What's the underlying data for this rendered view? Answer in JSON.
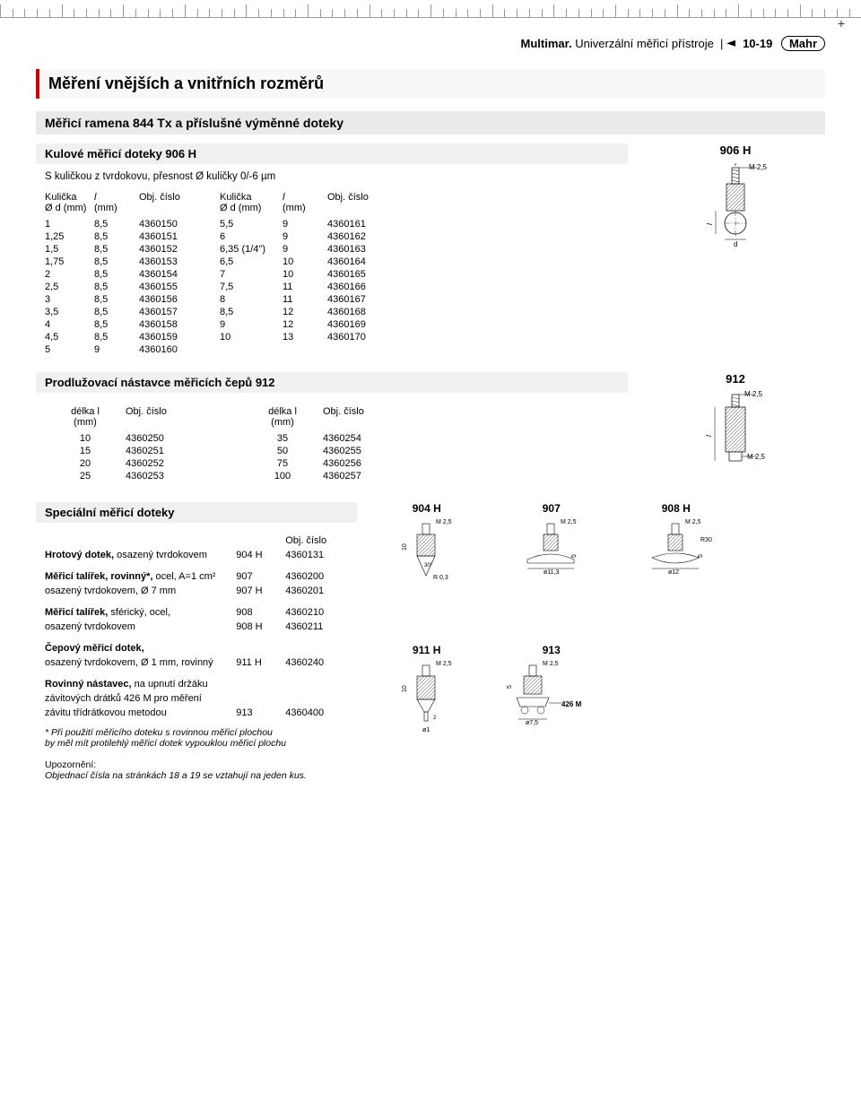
{
  "header": {
    "brand_prefix": "Multimar.",
    "subtitle": "Univerzální měřicí přístroje",
    "page": "10-19",
    "brand": "Mahr"
  },
  "title": "Měření vnějších a vnitřních rozměrů",
  "section": "Měřicí ramena 844 Tx a příslušné výměnné doteky",
  "block1": {
    "heading": "Kulové měřicí doteky 906 H",
    "desc": "S kuličkou z tvrdokovu, přesnost Ø kuličky 0/-6 µm",
    "diagram_label": "906 H",
    "thread": "M 2,5",
    "dim_l": "l",
    "dim_d": "d",
    "col_headers": {
      "kulicka": "Kulička",
      "kulicka_unit": "Ø d (mm)",
      "l": "l",
      "l_unit": "(mm)",
      "obj": "Obj. číslo"
    },
    "rows_left": [
      [
        "1",
        "8,5",
        "4360150"
      ],
      [
        "1,25",
        "8,5",
        "4360151"
      ],
      [
        "1,5",
        "8,5",
        "4360152"
      ],
      [
        "1,75",
        "8,5",
        "4360153"
      ],
      [
        "2",
        "8,5",
        "4360154"
      ],
      [
        "2,5",
        "8,5",
        "4360155"
      ],
      [
        "3",
        "8,5",
        "4360156"
      ],
      [
        "3,5",
        "8,5",
        "4360157"
      ],
      [
        "4",
        "8,5",
        "4360158"
      ],
      [
        "4,5",
        "8,5",
        "4360159"
      ],
      [
        "5",
        "9",
        "4360160"
      ]
    ],
    "rows_right": [
      [
        "5,5",
        "9",
        "4360161"
      ],
      [
        "6",
        "9",
        "4360162"
      ],
      [
        "6,35 (1/4\")",
        "9",
        "4360163"
      ],
      [
        "6,5",
        "10",
        "4360164"
      ],
      [
        "7",
        "10",
        "4360165"
      ],
      [
        "7,5",
        "11",
        "4360166"
      ],
      [
        "8",
        "11",
        "4360167"
      ],
      [
        "8,5",
        "12",
        "4360168"
      ],
      [
        "9",
        "12",
        "4360169"
      ],
      [
        "10",
        "13",
        "4360170"
      ]
    ]
  },
  "block2": {
    "heading": "Prodlužovací nástavce měřicích čepů 912",
    "diagram_label": "912",
    "thread": "M 2,5",
    "thread2": "M 2,5",
    "dim_l": "l",
    "col_headers": {
      "delka": "délka l",
      "delka_unit": "(mm)",
      "obj": "Obj. číslo"
    },
    "rows_left": [
      [
        "10",
        "4360250"
      ],
      [
        "15",
        "4360251"
      ],
      [
        "20",
        "4360252"
      ],
      [
        "25",
        "4360253"
      ]
    ],
    "rows_right": [
      [
        "35",
        "4360254"
      ],
      [
        "50",
        "4360255"
      ],
      [
        "75",
        "4360256"
      ],
      [
        "100",
        "4360257"
      ]
    ]
  },
  "block3": {
    "heading": "Speciální měřicí doteky",
    "obj_header": "Obj. číslo",
    "items": [
      {
        "lead": "Hrotový dotek,",
        "rest": " osazený tvrdokovem",
        "code": "904 H",
        "num": "4360131"
      },
      {
        "lead": "Měřicí talířek, rovinný*,",
        "rest": " ocel, A=1 cm²",
        "code": "907",
        "num": "4360200"
      },
      {
        "lead": "",
        "rest": "osazený tvrdokovem, Ø 7 mm",
        "code": "907 H",
        "num": "4360201"
      },
      {
        "lead": "Měřicí talířek,",
        "rest": " sférický, ocel,",
        "code": "908",
        "num": "4360210"
      },
      {
        "lead": "",
        "rest": "osazený tvrdokovem",
        "code": "908 H",
        "num": "4360211"
      },
      {
        "lead": "Čepový měřicí dotek,",
        "rest": "",
        "code": "",
        "num": ""
      },
      {
        "lead": "",
        "rest": "osazený tvrdokovem, Ø 1 mm, rovinný",
        "code": "911 H",
        "num": "4360240"
      },
      {
        "lead": "Rovinný nástavec,",
        "rest": " na upnutí držáku",
        "code": "",
        "num": ""
      },
      {
        "lead": "",
        "rest": "závitových drátků 426 M pro měření",
        "code": "",
        "num": ""
      },
      {
        "lead": "",
        "rest": "závitu třídrátkovou metodou",
        "code": "913",
        "num": "4360400"
      }
    ],
    "diagrams": [
      {
        "title": "904 H",
        "thread": "M 2,5",
        "h": "10",
        "angle": "30°",
        "r": "R 0,3"
      },
      {
        "title": "907",
        "thread": "M 2,5",
        "h": "5",
        "dia": "ø11,3"
      },
      {
        "title": "908 H",
        "thread": "M 2,5",
        "h": "5",
        "r": "R30",
        "dia": "ø12"
      },
      {
        "title": "911 H",
        "thread": "M 2,5",
        "h": "10",
        "h2": "2",
        "dia": "ø1"
      },
      {
        "title": "913",
        "thread": "M 2,5",
        "h": "5",
        "dia": "ø7,5",
        "label": "426 M"
      }
    ],
    "footnote": "* Při použití měřicího doteku s rovinnou měřicí plochou\n  by měl mít protilehlý měřicí dotek vypouklou měřicí plochu",
    "notice_lead": "Upozornění:",
    "notice": "Objednací čísla na stránkách 18 a 19 se vztahují na jeden kus."
  }
}
